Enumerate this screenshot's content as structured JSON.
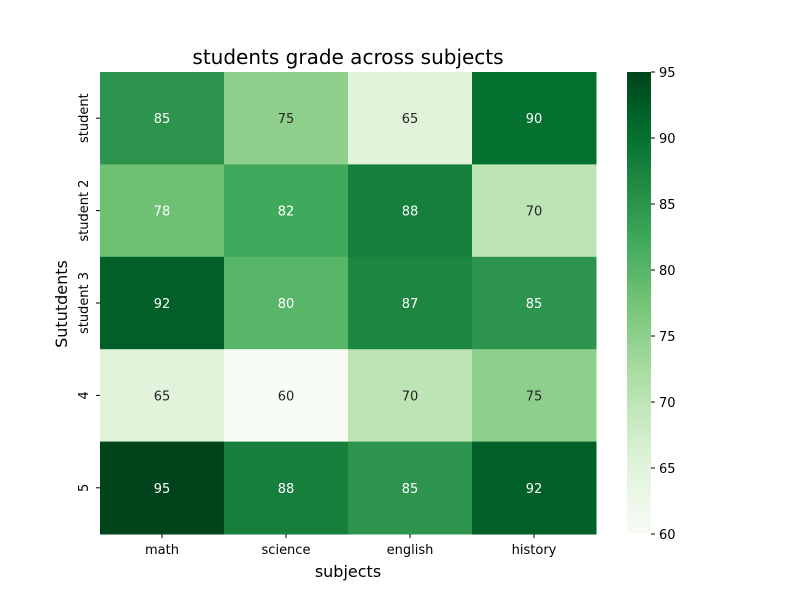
{
  "chart_data": {
    "type": "heatmap",
    "title": "students grade across subjects",
    "xlabel": "subjects",
    "ylabel": "Sututdents",
    "columns": [
      "math",
      "science",
      "english",
      "history"
    ],
    "rows": [
      "student",
      "student 2",
      "student 3",
      "4",
      "5"
    ],
    "values": [
      [
        85,
        75,
        65,
        90
      ],
      [
        78,
        82,
        88,
        70
      ],
      [
        92,
        80,
        87,
        85
      ],
      [
        65,
        60,
        70,
        75
      ],
      [
        95,
        88,
        85,
        92
      ]
    ],
    "annotations": true,
    "colormap": "Greens",
    "colorbar": {
      "min": 60,
      "max": 95,
      "ticks": [
        60,
        65,
        70,
        75,
        80,
        85,
        90,
        95
      ]
    }
  }
}
